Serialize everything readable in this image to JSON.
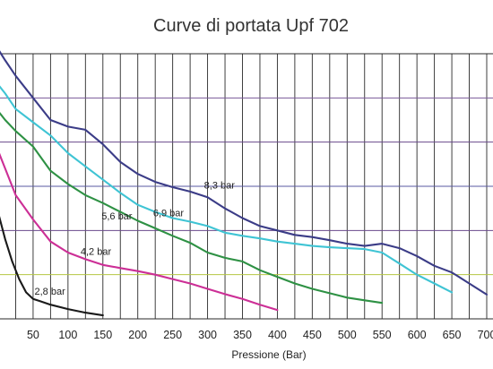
{
  "chart_data": {
    "type": "line",
    "title": "Curve di portata Upf 702",
    "xlabel": "Pressione (Bar)",
    "ylabel": "",
    "xlim": [
      0,
      700
    ],
    "ylim": [
      0,
      6
    ],
    "x_ticks": [
      "50",
      "100",
      "150",
      "200",
      "250",
      "300",
      "350",
      "400",
      "450",
      "500",
      "550",
      "600",
      "650",
      "700"
    ],
    "x_tick_values": [
      50,
      100,
      150,
      200,
      250,
      300,
      350,
      400,
      450,
      500,
      550,
      600,
      650,
      700
    ],
    "vertical_grid_values": [
      0,
      25,
      50,
      75,
      100,
      125,
      150,
      175,
      200,
      225,
      250,
      275,
      300,
      325,
      350,
      375,
      400,
      425,
      450,
      475,
      500,
      525,
      550,
      575,
      600,
      625,
      650,
      675,
      700
    ],
    "horizontal_grid_values": [
      1,
      2,
      3,
      4,
      5
    ],
    "grid": true,
    "legend": "none",
    "series": [
      {
        "name": "2,8 bar",
        "color": "#1a1a1a",
        "x": [
          0,
          5,
          10,
          20,
          30,
          40,
          50,
          60,
          75,
          100,
          125,
          150
        ],
        "y": [
          2.4,
          2.1,
          1.8,
          1.3,
          0.9,
          0.6,
          0.45,
          0.4,
          0.32,
          0.22,
          0.14,
          0.08
        ],
        "label_x": 52,
        "label_y": 0.55
      },
      {
        "name": "4,2 bar",
        "color": "#cc2f96",
        "x": [
          0,
          10,
          25,
          50,
          75,
          100,
          125,
          150,
          175,
          200,
          225,
          250,
          275,
          300,
          325,
          350,
          375,
          400
        ],
        "y": [
          3.8,
          3.4,
          2.8,
          2.25,
          1.75,
          1.5,
          1.35,
          1.22,
          1.15,
          1.08,
          1.0,
          0.9,
          0.8,
          0.68,
          0.56,
          0.45,
          0.32,
          0.2
        ],
        "label_x": 118,
        "label_y": 1.45
      },
      {
        "name": "5,6 bar",
        "color": "#2e9144",
        "x": [
          0,
          10,
          25,
          50,
          75,
          100,
          125,
          150,
          175,
          200,
          225,
          250,
          275,
          300,
          325,
          350,
          375,
          400,
          425,
          450,
          475,
          500,
          525,
          550
        ],
        "y": [
          4.7,
          4.5,
          4.25,
          3.9,
          3.35,
          3.05,
          2.8,
          2.62,
          2.42,
          2.22,
          2.05,
          1.88,
          1.72,
          1.5,
          1.38,
          1.3,
          1.1,
          0.95,
          0.8,
          0.68,
          0.58,
          0.48,
          0.42,
          0.36
        ],
        "label_x": 148,
        "label_y": 2.25
      },
      {
        "name": "6,9 bar",
        "color": "#3fc4d4",
        "x": [
          0,
          10,
          25,
          50,
          75,
          100,
          125,
          150,
          175,
          200,
          225,
          250,
          275,
          300,
          325,
          350,
          375,
          400,
          425,
          450,
          475,
          500,
          525,
          550,
          575,
          600,
          625,
          650
        ],
        "y": [
          5.3,
          5.1,
          4.75,
          4.45,
          4.15,
          3.75,
          3.45,
          3.15,
          2.85,
          2.58,
          2.42,
          2.28,
          2.2,
          2.1,
          1.95,
          1.88,
          1.82,
          1.75,
          1.7,
          1.65,
          1.62,
          1.6,
          1.58,
          1.5,
          1.25,
          1.0,
          0.8,
          0.6
        ],
        "label_x": 222,
        "label_y": 2.32
      },
      {
        "name": "8,3 bar",
        "color": "#3b3c87",
        "x": [
          0,
          10,
          25,
          50,
          75,
          100,
          125,
          150,
          175,
          200,
          225,
          250,
          275,
          300,
          325,
          350,
          375,
          400,
          425,
          450,
          475,
          500,
          525,
          550,
          575,
          600,
          625,
          650,
          675,
          700
        ],
        "y": [
          6.1,
          5.85,
          5.5,
          5.0,
          4.5,
          4.35,
          4.28,
          3.95,
          3.55,
          3.28,
          3.1,
          2.98,
          2.88,
          2.75,
          2.5,
          2.28,
          2.1,
          2.0,
          1.9,
          1.85,
          1.78,
          1.7,
          1.65,
          1.7,
          1.6,
          1.42,
          1.2,
          1.05,
          0.8,
          0.55
        ],
        "label_x": 295,
        "label_y": 2.95
      }
    ],
    "point_labels": {
      "line": "Curve di portata Upf 702"
    }
  }
}
